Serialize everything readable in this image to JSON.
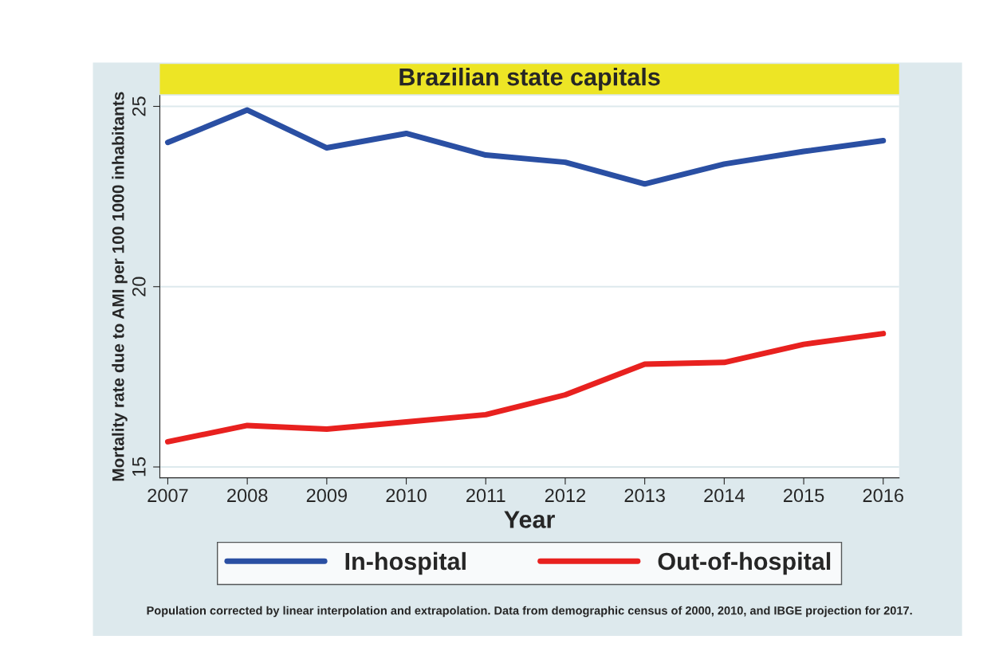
{
  "chart_data": {
    "type": "line",
    "title": "Brazilian state capitals",
    "xlabel": "Year",
    "ylabel": "Mortality rate due to AMI per 100 1000 inhabitants",
    "x": [
      2007,
      2008,
      2009,
      2010,
      2011,
      2012,
      2013,
      2014,
      2015,
      2016
    ],
    "series": [
      {
        "name": "In-hospital",
        "color": "#2a4fa3",
        "values": [
          24.0,
          24.9,
          23.85,
          24.25,
          23.65,
          23.45,
          22.85,
          23.4,
          23.75,
          24.05
        ]
      },
      {
        "name": "Out-of-hospital",
        "color": "#e8211f",
        "values": [
          15.7,
          16.15,
          16.05,
          16.25,
          16.45,
          17.0,
          17.85,
          17.9,
          18.4,
          18.7
        ]
      }
    ],
    "xlim": [
      2006.9,
      2016.2
    ],
    "ylim": [
      14.7,
      25.3
    ],
    "xticks": [
      2007,
      2008,
      2009,
      2010,
      2011,
      2012,
      2013,
      2014,
      2015,
      2016
    ],
    "yticks": [
      15,
      20,
      25
    ],
    "grid": "y",
    "legend": "bottom",
    "marker": "none",
    "line_style": "solid",
    "annotations": [
      "Population corrected by linear interpolation and extrapolation. Data from demographic census of 2000, 2010, and IBGE projection for 2017."
    ]
  }
}
